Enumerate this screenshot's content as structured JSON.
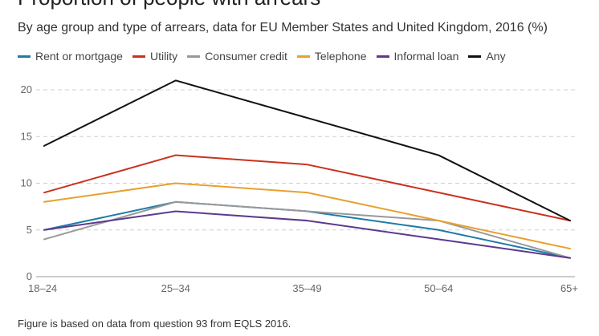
{
  "chart_data": {
    "type": "line",
    "title": "Proportion of people with arrears",
    "subtitle": "By age group and type of arrears, data for EU Member States and United Kingdom, 2016 (%)",
    "categories": [
      "18–24",
      "25–34",
      "35–49",
      "50–64",
      "65+"
    ],
    "ylim": [
      0,
      20
    ],
    "yticks": [
      0,
      5,
      10,
      15,
      20
    ],
    "grid": true,
    "legend_position": "top-left",
    "xlabel": "",
    "ylabel": "",
    "series": [
      {
        "name": "Rent or mortgage",
        "color": "#1e7ca8",
        "values": [
          5,
          8,
          7,
          5,
          2
        ]
      },
      {
        "name": "Utility",
        "color": "#c9321e",
        "values": [
          9,
          13,
          12,
          9,
          6
        ]
      },
      {
        "name": "Consumer credit",
        "color": "#999999",
        "values": [
          4,
          8,
          7,
          6,
          2
        ]
      },
      {
        "name": "Telephone",
        "color": "#e8a030",
        "values": [
          8,
          10,
          9,
          6,
          3
        ]
      },
      {
        "name": "Informal loan",
        "color": "#5b3a8c",
        "values": [
          5,
          7,
          6,
          4,
          2
        ]
      },
      {
        "name": "Any",
        "color": "#111111",
        "values": [
          14,
          21,
          17,
          13,
          6
        ]
      }
    ],
    "footnote": "Figure is based on data from question 93 from EQLS 2016."
  }
}
